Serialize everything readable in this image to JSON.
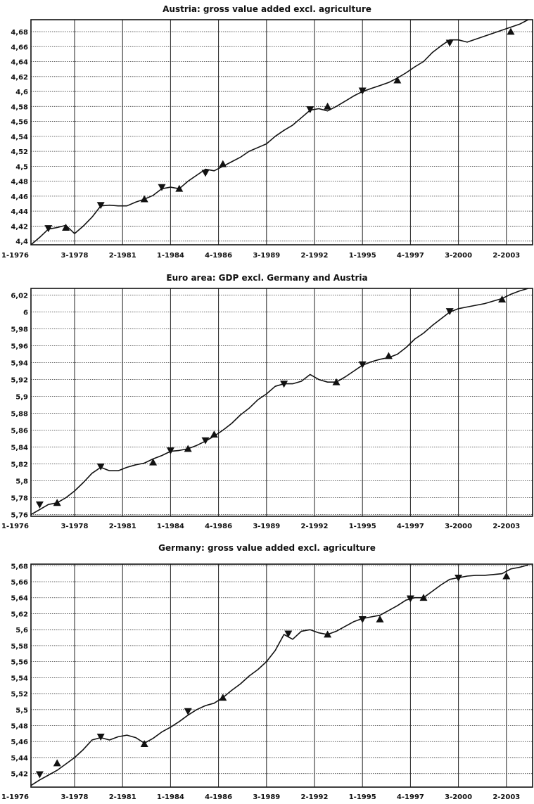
{
  "chart_data": [
    {
      "type": "line",
      "title": "Austria: gross value added excl. agriculture",
      "xlabel": "",
      "ylabel": "",
      "x_domain": [
        1976.0,
        2004.75
      ],
      "ylim": [
        4.395,
        4.696
      ],
      "yticks": [
        4.4,
        4.42,
        4.44,
        4.46,
        4.48,
        4.5,
        4.52,
        4.54,
        4.56,
        4.58,
        4.6,
        4.62,
        4.64,
        4.66,
        4.68
      ],
      "ytick_labels": [
        "4,4",
        "4,42",
        "4,44",
        "4,46",
        "4,48",
        "4,5",
        "4,52",
        "4,54",
        "4,56",
        "4,58",
        "4,6",
        "4,62",
        "4,64",
        "4,66",
        "4,68"
      ],
      "xticks": [
        1976.0,
        1978.5,
        1981.25,
        1984.0,
        1986.75,
        1989.5,
        1992.25,
        1995.0,
        1997.75,
        2000.5,
        2003.25
      ],
      "xtick_labels": [
        "1-1976",
        "3-1978",
        "2-1981",
        "1-1984",
        "4-1986",
        "3-1989",
        "2-1992",
        "1-1995",
        "4-1997",
        "3-2000",
        "2-2003"
      ],
      "grid": true,
      "series": [
        {
          "x": [
            1976.0,
            1976.5,
            1977.0,
            1977.5,
            1978.0,
            1978.5,
            1979.0,
            1979.5,
            1980.0,
            1980.5,
            1981.0,
            1981.5,
            1982.0,
            1982.5,
            1983.0,
            1983.5,
            1984.0,
            1984.5,
            1985.0,
            1985.5,
            1986.0,
            1986.5,
            1987.0,
            1987.5,
            1988.0,
            1988.5,
            1989.0,
            1989.5,
            1990.0,
            1990.5,
            1991.0,
            1991.5,
            1992.0,
            1992.5,
            1993.0,
            1993.5,
            1994.0,
            1994.5,
            1995.0,
            1995.5,
            1996.0,
            1996.5,
            1997.0,
            1997.5,
            1998.0,
            1998.5,
            1999.0,
            1999.5,
            2000.0,
            2000.5,
            2001.0,
            2001.5,
            2002.0,
            2002.5,
            2003.0,
            2003.5,
            2004.0,
            2004.5
          ],
          "y": [
            4.395,
            4.405,
            4.416,
            4.418,
            4.421,
            4.41,
            4.42,
            4.432,
            4.447,
            4.448,
            4.447,
            4.447,
            4.452,
            4.456,
            4.461,
            4.47,
            4.472,
            4.47,
            4.48,
            4.488,
            4.496,
            4.494,
            4.5,
            4.506,
            4.512,
            4.52,
            4.525,
            4.53,
            4.54,
            4.548,
            4.555,
            4.565,
            4.575,
            4.577,
            4.574,
            4.58,
            4.587,
            4.594,
            4.6,
            4.604,
            4.608,
            4.612,
            4.618,
            4.625,
            4.633,
            4.64,
            4.652,
            4.661,
            4.669,
            4.669,
            4.666,
            4.67,
            4.674,
            4.678,
            4.682,
            4.686,
            4.69,
            4.696
          ]
        }
      ],
      "markers": [
        {
          "x": 1977.0,
          "y": 4.416,
          "dir": "down"
        },
        {
          "x": 1978.0,
          "y": 4.418,
          "dir": "up"
        },
        {
          "x": 1980.0,
          "y": 4.447,
          "dir": "down"
        },
        {
          "x": 1982.5,
          "y": 4.456,
          "dir": "up"
        },
        {
          "x": 1983.5,
          "y": 4.471,
          "dir": "down"
        },
        {
          "x": 1984.5,
          "y": 4.47,
          "dir": "up"
        },
        {
          "x": 1986.0,
          "y": 4.49,
          "dir": "down"
        },
        {
          "x": 1987.0,
          "y": 4.503,
          "dir": "up"
        },
        {
          "x": 1992.0,
          "y": 4.575,
          "dir": "down"
        },
        {
          "x": 1993.0,
          "y": 4.58,
          "dir": "up"
        },
        {
          "x": 1995.0,
          "y": 4.6,
          "dir": "down"
        },
        {
          "x": 1997.0,
          "y": 4.615,
          "dir": "up"
        },
        {
          "x": 2000.0,
          "y": 4.664,
          "dir": "down"
        },
        {
          "x": 2003.5,
          "y": 4.68,
          "dir": "up"
        }
      ]
    },
    {
      "type": "line",
      "title": "Euro area: GDP excl. Germany and Austria",
      "xlabel": "",
      "ylabel": "",
      "x_domain": [
        1976.0,
        2004.75
      ],
      "ylim": [
        5.758,
        6.028
      ],
      "yticks": [
        5.76,
        5.78,
        5.8,
        5.82,
        5.84,
        5.86,
        5.88,
        5.9,
        5.92,
        5.94,
        5.96,
        5.98,
        6.0,
        6.02
      ],
      "ytick_labels": [
        "5,76",
        "5,78",
        "5,8",
        "5,82",
        "5,84",
        "5,86",
        "5,88",
        "5,9",
        "5,92",
        "5,94",
        "5,96",
        "5,98",
        "6",
        "6,02"
      ],
      "xticks": [
        1976.0,
        1978.5,
        1981.25,
        1984.0,
        1986.75,
        1989.5,
        1992.25,
        1995.0,
        1997.75,
        2000.5,
        2003.25
      ],
      "xtick_labels": [
        "1-1976",
        "3-1978",
        "2-1981",
        "1-1984",
        "4-1986",
        "3-1989",
        "2-1992",
        "1-1995",
        "4-1997",
        "3-2000",
        "2-2003"
      ],
      "grid": true,
      "series": [
        {
          "x": [
            1976.0,
            1976.5,
            1977.0,
            1977.5,
            1978.0,
            1978.5,
            1979.0,
            1979.5,
            1980.0,
            1980.5,
            1981.0,
            1981.5,
            1982.0,
            1982.5,
            1983.0,
            1983.5,
            1984.0,
            1984.5,
            1985.0,
            1985.5,
            1986.0,
            1986.5,
            1987.0,
            1987.5,
            1988.0,
            1988.5,
            1989.0,
            1989.5,
            1990.0,
            1990.5,
            1991.0,
            1991.5,
            1992.0,
            1992.5,
            1993.0,
            1993.5,
            1994.0,
            1994.5,
            1995.0,
            1995.5,
            1996.0,
            1996.5,
            1997.0,
            1997.5,
            1998.0,
            1998.5,
            1999.0,
            1999.5,
            2000.0,
            2000.5,
            2001.0,
            2001.5,
            2002.0,
            2002.5,
            2003.0,
            2003.5,
            2004.0,
            2004.5
          ],
          "y": [
            5.76,
            5.766,
            5.772,
            5.774,
            5.78,
            5.788,
            5.798,
            5.809,
            5.816,
            5.812,
            5.812,
            5.816,
            5.819,
            5.821,
            5.826,
            5.83,
            5.835,
            5.836,
            5.838,
            5.842,
            5.847,
            5.853,
            5.86,
            5.868,
            5.878,
            5.886,
            5.896,
            5.903,
            5.912,
            5.915,
            5.915,
            5.918,
            5.926,
            5.92,
            5.917,
            5.917,
            5.923,
            5.93,
            5.937,
            5.941,
            5.944,
            5.946,
            5.95,
            5.958,
            5.968,
            5.975,
            5.984,
            5.992,
            6.0,
            6.004,
            6.006,
            6.008,
            6.01,
            6.013,
            6.016,
            6.021,
            6.025,
            6.028
          ]
        }
      ],
      "markers": [
        {
          "x": 1976.5,
          "y": 5.771,
          "dir": "down"
        },
        {
          "x": 1977.5,
          "y": 5.774,
          "dir": "up"
        },
        {
          "x": 1980.0,
          "y": 5.816,
          "dir": "down"
        },
        {
          "x": 1983.0,
          "y": 5.822,
          "dir": "up"
        },
        {
          "x": 1984.0,
          "y": 5.835,
          "dir": "down"
        },
        {
          "x": 1985.0,
          "y": 5.838,
          "dir": "up"
        },
        {
          "x": 1986.0,
          "y": 5.847,
          "dir": "down"
        },
        {
          "x": 1986.5,
          "y": 5.855,
          "dir": "up"
        },
        {
          "x": 1990.5,
          "y": 5.914,
          "dir": "down"
        },
        {
          "x": 1993.5,
          "y": 5.917,
          "dir": "up"
        },
        {
          "x": 1995.0,
          "y": 5.937,
          "dir": "down"
        },
        {
          "x": 1996.5,
          "y": 5.948,
          "dir": "up"
        },
        {
          "x": 2000.0,
          "y": 6.0,
          "dir": "down"
        },
        {
          "x": 2003.0,
          "y": 6.015,
          "dir": "up"
        }
      ]
    },
    {
      "type": "line",
      "title": "Germany: gross value added excl. agriculture",
      "xlabel": "",
      "ylabel": "",
      "x_domain": [
        1976.0,
        2004.75
      ],
      "ylim": [
        5.403,
        5.682
      ],
      "yticks": [
        5.42,
        5.44,
        5.46,
        5.48,
        5.5,
        5.52,
        5.54,
        5.56,
        5.58,
        5.6,
        5.62,
        5.64,
        5.66,
        5.68
      ],
      "ytick_labels": [
        "5,42",
        "5,44",
        "5,46",
        "5,48",
        "5,5",
        "5,52",
        "5,54",
        "5,56",
        "5,58",
        "5,6",
        "5,62",
        "5,64",
        "5,66",
        "5,68"
      ],
      "xticks": [
        1976.0,
        1978.5,
        1981.25,
        1984.0,
        1986.75,
        1989.5,
        1992.25,
        1995.0,
        1997.75,
        2000.5,
        2003.25
      ],
      "xtick_labels": [
        "1-1976",
        "3-1978",
        "2-1981",
        "1-1984",
        "4-1986",
        "3-1989",
        "2-1992",
        "1-1995",
        "4-1997",
        "3-2000",
        "2-2003"
      ],
      "grid": true,
      "series": [
        {
          "x": [
            1976.0,
            1976.5,
            1977.0,
            1977.5,
            1978.0,
            1978.5,
            1979.0,
            1979.5,
            1980.0,
            1980.5,
            1981.0,
            1981.5,
            1982.0,
            1982.5,
            1983.0,
            1983.5,
            1984.0,
            1984.5,
            1985.0,
            1985.5,
            1986.0,
            1986.5,
            1987.0,
            1987.5,
            1988.0,
            1988.5,
            1989.0,
            1989.5,
            1990.0,
            1990.5,
            1991.0,
            1991.5,
            1992.0,
            1992.5,
            1993.0,
            1993.5,
            1994.0,
            1994.5,
            1995.0,
            1995.5,
            1996.0,
            1996.5,
            1997.0,
            1997.5,
            1998.0,
            1998.5,
            1999.0,
            1999.5,
            2000.0,
            2000.5,
            2001.0,
            2001.5,
            2002.0,
            2002.5,
            2003.0,
            2003.5,
            2004.0,
            2004.5
          ],
          "y": [
            5.405,
            5.412,
            5.418,
            5.424,
            5.432,
            5.44,
            5.45,
            5.462,
            5.465,
            5.462,
            5.466,
            5.468,
            5.465,
            5.458,
            5.464,
            5.472,
            5.478,
            5.485,
            5.493,
            5.5,
            5.505,
            5.508,
            5.515,
            5.524,
            5.532,
            5.542,
            5.55,
            5.56,
            5.574,
            5.594,
            5.588,
            5.598,
            5.6,
            5.596,
            5.594,
            5.598,
            5.604,
            5.61,
            5.614,
            5.616,
            5.618,
            5.624,
            5.63,
            5.637,
            5.64,
            5.64,
            5.648,
            5.656,
            5.663,
            5.665,
            5.667,
            5.668,
            5.668,
            5.669,
            5.67,
            5.676,
            5.678,
            5.681
          ]
        }
      ],
      "markers": [
        {
          "x": 1976.5,
          "y": 5.418,
          "dir": "down"
        },
        {
          "x": 1977.5,
          "y": 5.433,
          "dir": "up"
        },
        {
          "x": 1980.0,
          "y": 5.465,
          "dir": "down"
        },
        {
          "x": 1982.5,
          "y": 5.457,
          "dir": "up"
        },
        {
          "x": 1985.0,
          "y": 5.497,
          "dir": "down"
        },
        {
          "x": 1987.0,
          "y": 5.515,
          "dir": "up"
        },
        {
          "x": 1990.75,
          "y": 5.594,
          "dir": "down"
        },
        {
          "x": 1993.0,
          "y": 5.594,
          "dir": "up"
        },
        {
          "x": 1995.0,
          "y": 5.612,
          "dir": "down"
        },
        {
          "x": 1996.0,
          "y": 5.613,
          "dir": "up"
        },
        {
          "x": 1997.75,
          "y": 5.638,
          "dir": "down"
        },
        {
          "x": 1998.5,
          "y": 5.64,
          "dir": "up"
        },
        {
          "x": 2000.5,
          "y": 5.664,
          "dir": "down"
        },
        {
          "x": 2003.25,
          "y": 5.667,
          "dir": "up"
        }
      ]
    }
  ]
}
